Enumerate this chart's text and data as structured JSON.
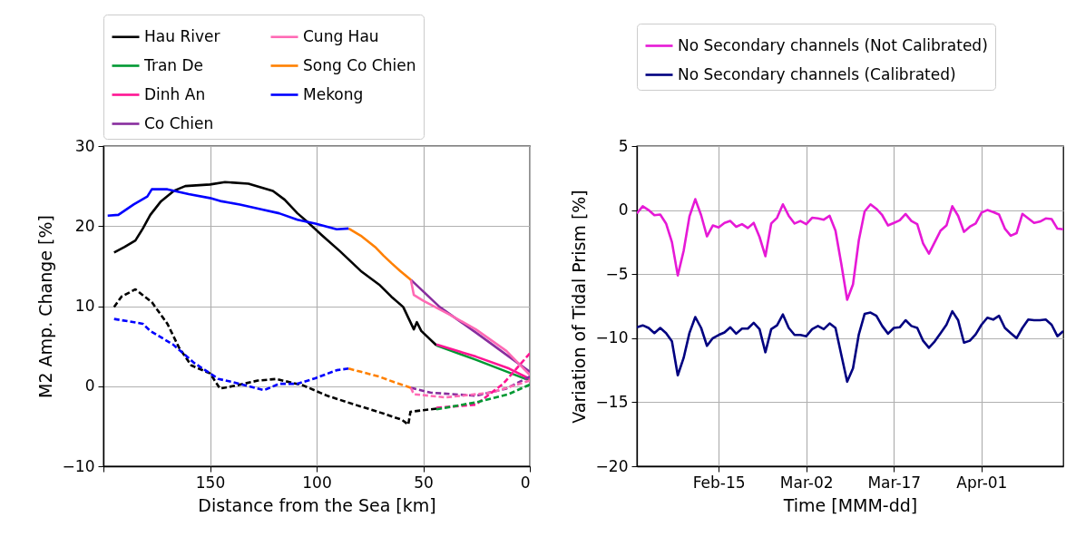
{
  "chart_data": [
    {
      "type": "line",
      "xlabel": "Distance from the Sea [km]",
      "ylabel": "M2 Amp. Change [%]",
      "xlim": [
        200,
        0
      ],
      "xticks": [
        {
          "value": 200,
          "label": null
        },
        150,
        100,
        50,
        0
      ],
      "ylim": [
        -10,
        30
      ],
      "yticks": [
        -10,
        0,
        10,
        20,
        30
      ],
      "grid": true,
      "legend": "top",
      "series": [
        {
          "name": "Hau River",
          "color": "#000000",
          "x": [
            195,
            190,
            185,
            181.5,
            178,
            173,
            167,
            161.6,
            150,
            143,
            132,
            120.5,
            115,
            109,
            103.4,
            97.7,
            89.2,
            79.3,
            70.7,
            65,
            59.4,
            54.4,
            53,
            50.9,
            43.8
          ],
          "values": [
            16.7,
            17.4,
            18.2,
            19.7,
            21.4,
            23.1,
            24.4,
            25.0,
            25.2,
            25.5,
            25.3,
            24.4,
            23.3,
            21.6,
            20.3,
            18.9,
            16.9,
            14.4,
            12.7,
            11.2,
            9.9,
            7.1,
            8.0,
            6.9,
            5.1
          ]
        },
        {
          "name": "Tran De",
          "color": "#009933",
          "x": [
            43.8,
            25.3,
            6.8,
            0
          ],
          "values": [
            5.1,
            3.3,
            1.4,
            0.7
          ]
        },
        {
          "name": "Dinh An",
          "color": "#ff1493",
          "x": [
            43.8,
            25.3,
            9.7,
            0
          ],
          "values": [
            5.2,
            3.7,
            2.2,
            0.9
          ]
        },
        {
          "name": "Co Chien",
          "color": "#882d9e",
          "x": [
            55.8,
            42.3,
            25.3,
            0
          ],
          "values": [
            13.3,
            9.9,
            6.7,
            1.8
          ]
        },
        {
          "name": "Cung Hau",
          "color": "#ff69b4",
          "x": [
            55.8,
            54.4,
            50.1,
            38,
            25.3,
            11,
            0
          ],
          "values": [
            13.3,
            11.4,
            10.7,
            9.0,
            7.1,
            4.4,
            1.4
          ]
        },
        {
          "name": "Song Co Chien",
          "color": "#ff8000",
          "x": [
            85,
            79.3,
            72.2,
            68.6,
            65,
            60.8,
            55.8
          ],
          "values": [
            19.7,
            18.8,
            17.3,
            16.3,
            15.4,
            14.4,
            13.3
          ]
        },
        {
          "name": "Mekong",
          "color": "#0000ff",
          "x": [
            198,
            193,
            185.8,
            179.4,
            177.3,
            170,
            160,
            150,
            144.6,
            136,
            126,
            117.6,
            109,
            100.6,
            90.6,
            85
          ],
          "values": [
            21.3,
            21.4,
            22.7,
            23.7,
            24.6,
            24.6,
            24.0,
            23.5,
            23.1,
            22.7,
            22.1,
            21.6,
            20.8,
            20.3,
            19.6,
            19.7
          ]
        },
        {
          "color": "#000000",
          "line_style": "dashed",
          "x": [
            195,
            191.5,
            185,
            177.3,
            170,
            164.5,
            158.8,
            150,
            145.3,
            137.5,
            127.6,
            119,
            106.3,
            95,
            82.1,
            70,
            60,
            57,
            56,
            50,
            43.8
          ],
          "values": [
            9.9,
            11.2,
            12.1,
            10.5,
            7.8,
            4.8,
            2.6,
            1.6,
            -0.3,
            0.1,
            0.7,
            0.9,
            0.1,
            -1.2,
            -2.3,
            -3.3,
            -4.2,
            -4.8,
            -3.2,
            -3.0,
            -2.8
          ]
        },
        {
          "color": "#0000ff",
          "line_style": "dashed",
          "x": [
            195,
            181.5,
            178,
            167.3,
            157.4,
            146,
            139,
            124.7,
            117.6,
            109,
            100.6,
            90.6,
            85
          ],
          "values": [
            8.4,
            7.8,
            6.9,
            5.2,
            2.9,
            0.9,
            0.5,
            -0.5,
            0.3,
            0.3,
            1.0,
            2.0,
            2.2
          ]
        },
        {
          "color": "#ff8000",
          "line_style": "dashed",
          "x": [
            85,
            79.3,
            70.7,
            63.6,
            55.8
          ],
          "values": [
            2.2,
            1.8,
            1.2,
            0.5,
            -0.2
          ]
        },
        {
          "color": "#882d9e",
          "line_style": "dashed",
          "x": [
            55.8,
            46.6,
            25.3,
            11,
            0
          ],
          "values": [
            -0.2,
            -0.8,
            -1.2,
            -0.3,
            1.2
          ]
        },
        {
          "color": "#ff69b4",
          "line_style": "dashed",
          "x": [
            55.8,
            54.4,
            39.5,
            18,
            0
          ],
          "values": [
            -0.2,
            -1.0,
            -1.4,
            -0.8,
            0.7
          ]
        },
        {
          "color": "#ff1493",
          "line_style": "dashed",
          "x": [
            43.8,
            25.3,
            12.5,
            0
          ],
          "values": [
            -2.7,
            -2.3,
            0.3,
            4.1
          ]
        },
        {
          "color": "#009933",
          "line_style": "dashed",
          "x": [
            43.8,
            25,
            10,
            0
          ],
          "values": [
            -2.9,
            -2.0,
            -1.0,
            0.2
          ]
        }
      ]
    },
    {
      "type": "line",
      "xlabel": "Time [MMM-dd]",
      "ylabel": "Variation of Tidal Prism [%]",
      "xlim": [
        "--02-01",
        "--04-15"
      ],
      "xticks": [
        {
          "value": "--02-15",
          "label": "Feb-15"
        },
        {
          "value": "--03-02",
          "label": "Mar-02"
        },
        {
          "value": "--03-17",
          "label": "Mar-17"
        },
        {
          "value": "--04-01",
          "label": "Apr-01"
        }
      ],
      "ylim": [
        -20,
        5
      ],
      "yticks": [
        -20,
        -15,
        -10,
        -5,
        0,
        5
      ],
      "grid": true,
      "legend": "top",
      "x": [
        "--02-01",
        "--02-02",
        "--02-03",
        "--02-04",
        "--02-05",
        "--02-06",
        "--02-07",
        "--02-08",
        "--02-09",
        "--02-10",
        "--02-11",
        "--02-12",
        "--02-13",
        "--02-14",
        "--02-15",
        "--02-16",
        "--02-17",
        "--02-18",
        "--02-19",
        "--02-20",
        "--02-21",
        "--02-22",
        "--02-23",
        "--02-24",
        "--02-25",
        "--02-26",
        "--02-27",
        "--02-28",
        "--03-01",
        "--03-02",
        "--03-03",
        "--03-04",
        "--03-05",
        "--03-06",
        "--03-07",
        "--03-08",
        "--03-09",
        "--03-10",
        "--03-11",
        "--03-12",
        "--03-13",
        "--03-14",
        "--03-15",
        "--03-16",
        "--03-17",
        "--03-18",
        "--03-19",
        "--03-20",
        "--03-21",
        "--03-22",
        "--03-23",
        "--03-24",
        "--03-25",
        "--03-26",
        "--03-27",
        "--03-28",
        "--03-29",
        "--03-30",
        "--03-31",
        "--04-01",
        "--04-02",
        "--04-03",
        "--04-04",
        "--04-05",
        "--04-06",
        "--04-07",
        "--04-08",
        "--04-09",
        "--04-10",
        "--04-11",
        "--04-12",
        "--04-13",
        "--04-14",
        "--04-15"
      ],
      "series": [
        {
          "name": "No Secondary channels (Not Calibrated)",
          "color": "#e619d6",
          "values": [
            -0.26,
            0.3,
            0,
            -0.4,
            -0.35,
            -1.05,
            -2.5,
            -5.1,
            -3.2,
            -0.5,
            0.85,
            -0.4,
            -2.05,
            -1.2,
            -1.35,
            -1.0,
            -0.85,
            -1.3,
            -1.1,
            -1.4,
            -1.0,
            -2.1,
            -3.6,
            -1.05,
            -0.6,
            0.45,
            -0.45,
            -1.05,
            -0.85,
            -1.1,
            -0.6,
            -0.65,
            -0.75,
            -0.45,
            -1.6,
            -4.2,
            -7.0,
            -5.8,
            -2.35,
            -0.1,
            0.45,
            0.1,
            -0.4,
            -1.2,
            -1.0,
            -0.8,
            -0.3,
            -0.85,
            -1.1,
            -2.6,
            -3.4,
            -2.5,
            -1.6,
            -1.2,
            0.3,
            -0.45,
            -1.7,
            -1.3,
            -1.05,
            -0.2,
            0,
            -0.15,
            -0.35,
            -1.45,
            -2.0,
            -1.8,
            -0.3,
            -0.65,
            -1.0,
            -0.9,
            -0.65,
            -0.7,
            -1.45,
            -1.5
          ]
        },
        {
          "name": "No Secondary channels (Calibrated)",
          "color": "#000080",
          "values": [
            -9.15,
            -9.0,
            -9.2,
            -9.6,
            -9.2,
            -9.6,
            -10.25,
            -12.9,
            -11.55,
            -9.6,
            -8.35,
            -9.2,
            -10.6,
            -10.0,
            -9.75,
            -9.55,
            -9.15,
            -9.65,
            -9.25,
            -9.25,
            -8.8,
            -9.3,
            -11.1,
            -9.3,
            -9.0,
            -8.15,
            -9.2,
            -9.75,
            -9.75,
            -9.85,
            -9.3,
            -9.05,
            -9.3,
            -8.85,
            -9.2,
            -11.3,
            -13.4,
            -12.35,
            -9.7,
            -8.1,
            -8.0,
            -8.25,
            -9.05,
            -9.65,
            -9.2,
            -9.15,
            -8.6,
            -9.05,
            -9.2,
            -10.2,
            -10.75,
            -10.25,
            -9.6,
            -8.95,
            -7.9,
            -8.6,
            -10.35,
            -10.2,
            -9.7,
            -8.95,
            -8.4,
            -8.55,
            -8.25,
            -9.2,
            -9.6,
            -10.0,
            -9.2,
            -8.55,
            -8.6,
            -8.6,
            -8.55,
            -8.95,
            -9.85,
            -9.45
          ]
        }
      ]
    }
  ]
}
